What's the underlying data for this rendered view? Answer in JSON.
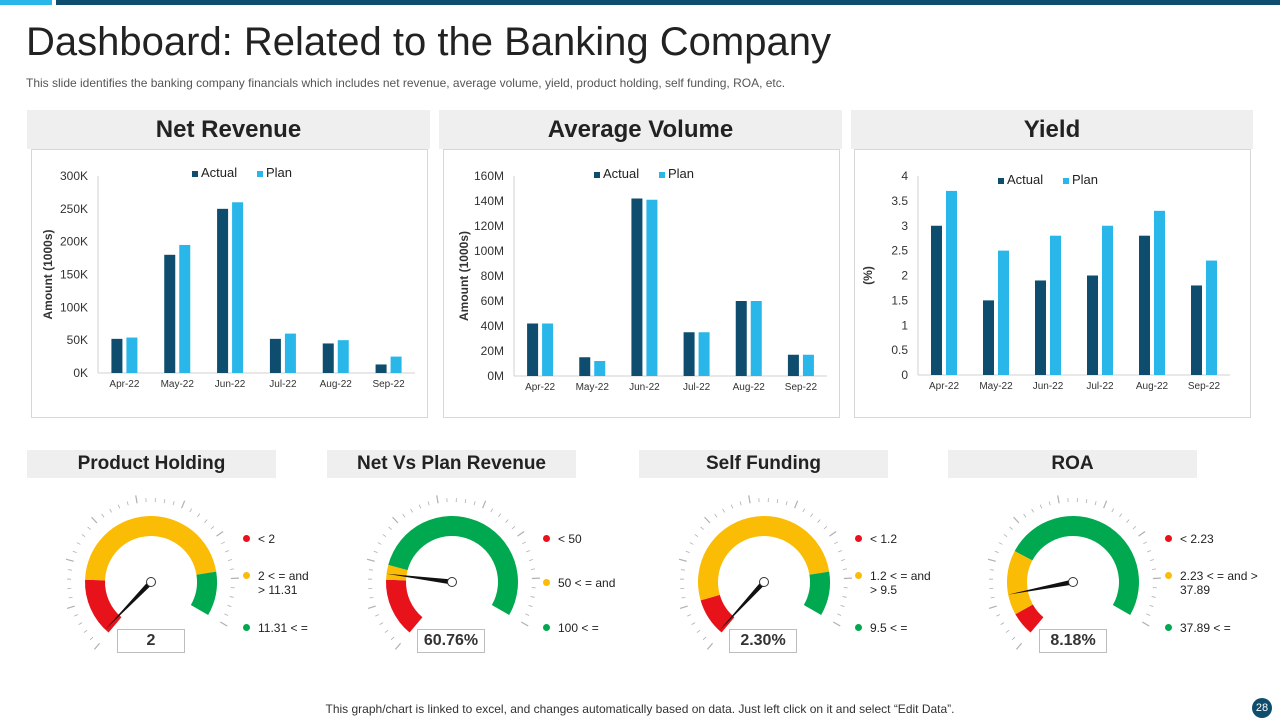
{
  "header": {
    "title": "Dashboard: Related to the Banking Company",
    "subtitle": "This slide identifies the banking company financials which includes net revenue, average volume, yield, product holding, self funding, ROA, etc."
  },
  "colors": {
    "actual": "#0e4d6e",
    "plan": "#29b6e8",
    "red": "#e8121a",
    "yellow": "#fbbc05",
    "green": "#00a84f"
  },
  "chart_data": [
    {
      "type": "bar",
      "title": "Net Revenue",
      "ylabel": "Amount (1000s)",
      "categories": [
        "Apr-22",
        "May-22",
        "Jun-22",
        "Jul-22",
        "Aug-22",
        "Sep-22"
      ],
      "yticks": [
        "0K",
        "50K",
        "100K",
        "150K",
        "200K",
        "250K",
        "300K"
      ],
      "ylim": [
        0,
        300
      ],
      "series": [
        {
          "name": "Actual",
          "values": [
            52,
            180,
            250,
            52,
            45,
            13
          ]
        },
        {
          "name": "Plan",
          "values": [
            54,
            195,
            260,
            60,
            50,
            25
          ]
        }
      ],
      "legend": "top"
    },
    {
      "type": "bar",
      "title": "Average Volume",
      "ylabel": "Amount (1000s)",
      "categories": [
        "Apr-22",
        "May-22",
        "Jun-22",
        "Jul-22",
        "Aug-22",
        "Sep-22"
      ],
      "yticks": [
        "0M",
        "20M",
        "40M",
        "60M",
        "80M",
        "100M",
        "120M",
        "140M",
        "160M"
      ],
      "ylim": [
        0,
        160
      ],
      "series": [
        {
          "name": "Actual",
          "values": [
            42,
            15,
            142,
            35,
            60,
            17
          ]
        },
        {
          "name": "Plan",
          "values": [
            42,
            12,
            141,
            35,
            60,
            17
          ]
        }
      ],
      "legend": "top"
    },
    {
      "type": "bar",
      "title": "Yield",
      "ylabel": "(%)",
      "categories": [
        "Apr-22",
        "May-22",
        "Jun-22",
        "Jul-22",
        "Aug-22",
        "Sep-22"
      ],
      "yticks": [
        "0",
        "0.5",
        "1",
        "1.5",
        "2",
        "2.5",
        "3",
        "3.5",
        "4"
      ],
      "ylim": [
        0,
        4
      ],
      "series": [
        {
          "name": "Actual",
          "values": [
            3.0,
            1.5,
            1.9,
            2.0,
            2.8,
            1.8
          ]
        },
        {
          "name": "Plan",
          "values": [
            3.7,
            2.5,
            2.8,
            3.0,
            3.3,
            2.3
          ]
        }
      ],
      "legend": "top"
    }
  ],
  "gauges": [
    {
      "title": "Product Holding",
      "value": "2",
      "fractions": [
        0.2,
        0.65,
        0.15
      ],
      "needle_fraction": 0.015,
      "legend": [
        "< 2",
        "2 < = and > 11.31",
        "11.31 < ="
      ]
    },
    {
      "title": "Net Vs Plan Revenue",
      "value": "60.76%",
      "fractions": [
        0.2,
        0.05,
        0.75
      ],
      "needle_fraction": 0.22,
      "legend": [
        "< 50",
        "50 < = and",
        "100 < ="
      ]
    },
    {
      "title": "Self Funding",
      "value": "2.30%",
      "fractions": [
        0.13,
        0.72,
        0.15
      ],
      "needle_fraction": 0.01,
      "legend": [
        "< 1.2",
        "1.2 < = and > 9.5",
        "9.5 < ="
      ]
    },
    {
      "title": "ROA",
      "value": "8.18%",
      "fractions": [
        0.08,
        0.22,
        0.7
      ],
      "needle_fraction": 0.15,
      "legend": [
        "< 2.23",
        "2.23 < = and > 37.89",
        "37.89 < ="
      ]
    }
  ],
  "footer": {
    "note": "This graph/chart is linked to excel,  and changes automatically based on data. Just left click on it and select “Edit Data”.",
    "page": "28"
  }
}
